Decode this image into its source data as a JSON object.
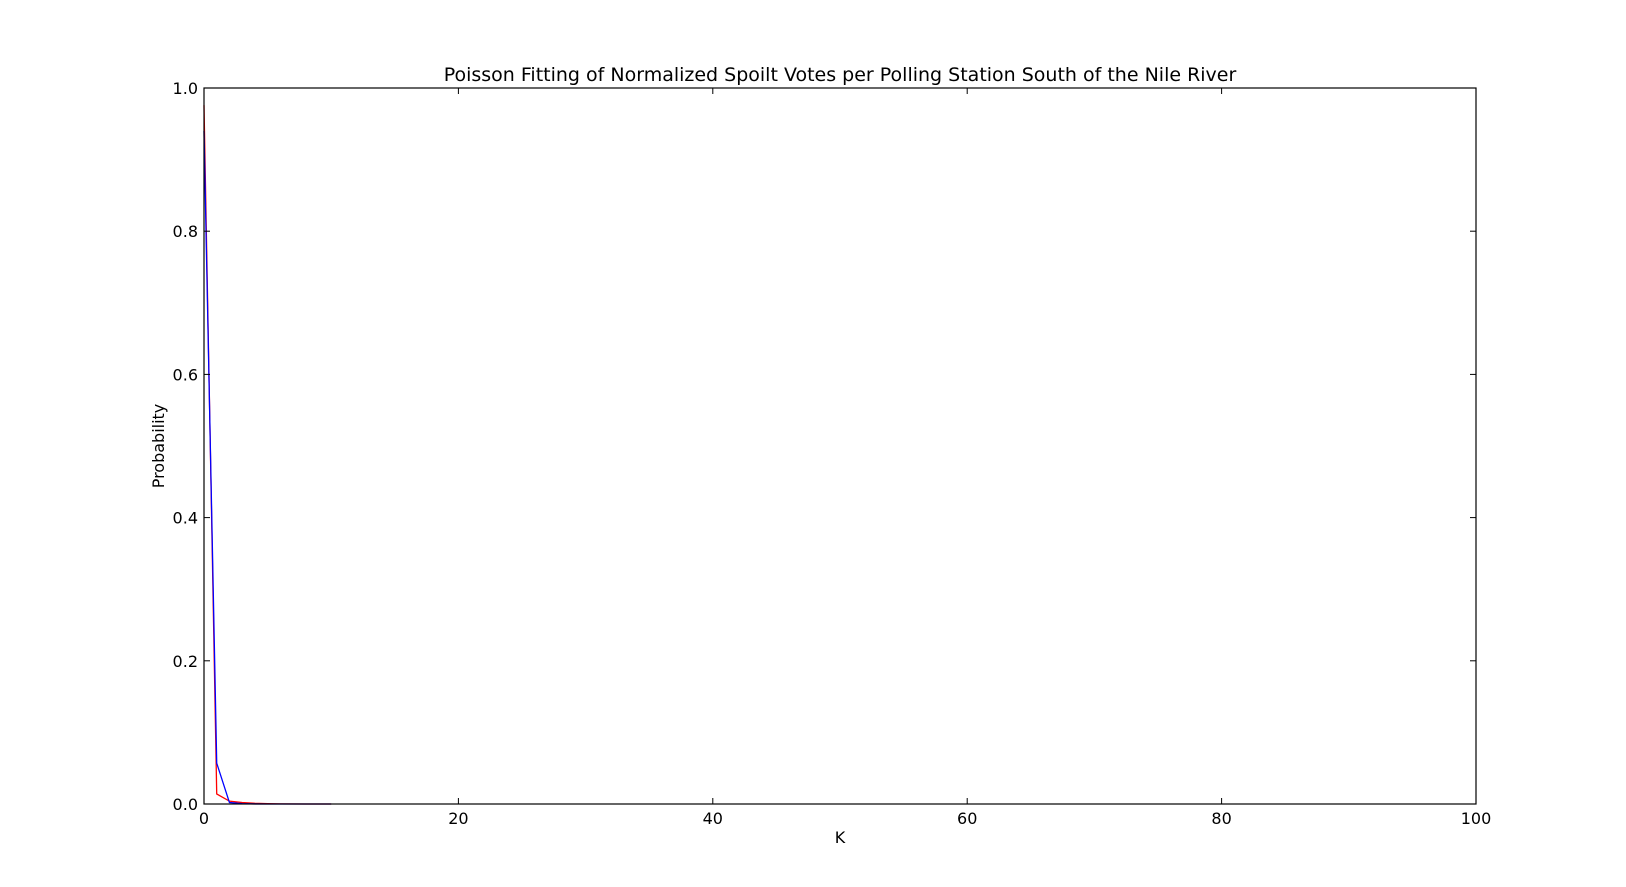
{
  "chart_data": {
    "type": "line",
    "title": "Poisson Fitting of Normalized Spoilt Votes per Polling Station South of the Nile River",
    "xlabel": "K",
    "ylabel": "Probability",
    "xlim": [
      0,
      100
    ],
    "ylim": [
      0,
      1.0
    ],
    "xticks": [
      "0",
      "20",
      "40",
      "60",
      "80",
      "100"
    ],
    "yticks": [
      "0.0",
      "0.2",
      "0.4",
      "0.6",
      "0.8",
      "1.0"
    ],
    "grid": false,
    "legend": "none",
    "series": [
      {
        "color": "#ff0000",
        "x": [
          0,
          1,
          2,
          3,
          4,
          5,
          6,
          8,
          10
        ],
        "y": [
          0.976,
          0.014,
          0.004,
          0.002,
          0.001,
          0.0005,
          0.0002,
          0.0,
          0.0
        ]
      },
      {
        "color": "#0000ff",
        "x": [
          0,
          1,
          2,
          3,
          4,
          5,
          6,
          8,
          10
        ],
        "y": [
          0.94,
          0.057,
          0.002,
          0.0005,
          0.0001,
          0.0,
          0.0,
          0.0,
          0.0
        ]
      }
    ]
  }
}
